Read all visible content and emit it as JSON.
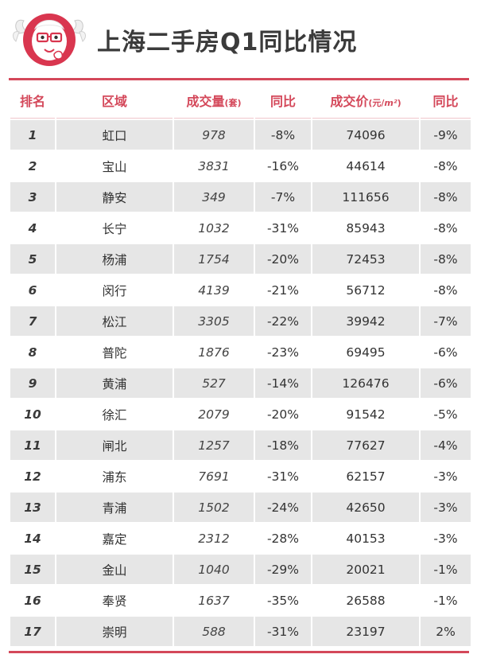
{
  "title": "上海二手房Q1同比情况",
  "headers": {
    "rank": "排名",
    "district": "区域",
    "volume": "成交量",
    "volume_unit": "(套)",
    "yoy1": "同比",
    "price": "成交价",
    "price_unit_a": "(元/",
    "price_unit_b": "m²",
    "price_unit_c": ")",
    "yoy2": "同比"
  },
  "rows": [
    {
      "rank": "1",
      "district": "虹口",
      "volume": "978",
      "yoy1": "-8%",
      "price": "74096",
      "yoy2": "-9%"
    },
    {
      "rank": "2",
      "district": "宝山",
      "volume": "3831",
      "yoy1": "-16%",
      "price": "44614",
      "yoy2": "-8%"
    },
    {
      "rank": "3",
      "district": "静安",
      "volume": "349",
      "yoy1": "-7%",
      "price": "111656",
      "yoy2": "-8%"
    },
    {
      "rank": "4",
      "district": "长宁",
      "volume": "1032",
      "yoy1": "-31%",
      "price": "85943",
      "yoy2": "-8%"
    },
    {
      "rank": "5",
      "district": "杨浦",
      "volume": "1754",
      "yoy1": "-20%",
      "price": "72453",
      "yoy2": "-8%"
    },
    {
      "rank": "6",
      "district": "闵行",
      "volume": "4139",
      "yoy1": "-21%",
      "price": "56712",
      "yoy2": "-8%"
    },
    {
      "rank": "7",
      "district": "松江",
      "volume": "3305",
      "yoy1": "-22%",
      "price": "39942",
      "yoy2": "-7%"
    },
    {
      "rank": "8",
      "district": "普陀",
      "volume": "1876",
      "yoy1": "-23%",
      "price": "69495",
      "yoy2": "-6%"
    },
    {
      "rank": "9",
      "district": "黄浦",
      "volume": "527",
      "yoy1": "-14%",
      "price": "126476",
      "yoy2": "-6%"
    },
    {
      "rank": "10",
      "district": "徐汇",
      "volume": "2079",
      "yoy1": "-20%",
      "price": "91542",
      "yoy2": "-5%"
    },
    {
      "rank": "11",
      "district": "闸北",
      "volume": "1257",
      "yoy1": "-18%",
      "price": "77627",
      "yoy2": "-4%"
    },
    {
      "rank": "12",
      "district": "浦东",
      "volume": "7691",
      "yoy1": "-31%",
      "price": "62157",
      "yoy2": "-3%"
    },
    {
      "rank": "13",
      "district": "青浦",
      "volume": "1502",
      "yoy1": "-24%",
      "price": "42650",
      "yoy2": "-3%"
    },
    {
      "rank": "14",
      "district": "嘉定",
      "volume": "2312",
      "yoy1": "-28%",
      "price": "40153",
      "yoy2": "-3%"
    },
    {
      "rank": "15",
      "district": "金山",
      "volume": "1040",
      "yoy1": "-29%",
      "price": "20021",
      "yoy2": "-1%"
    },
    {
      "rank": "16",
      "district": "奉贤",
      "volume": "1637",
      "yoy1": "-35%",
      "price": "26588",
      "yoy2": "-1%"
    },
    {
      "rank": "17",
      "district": "崇明",
      "volume": "588",
      "yoy1": "-31%",
      "price": "23197",
      "yoy2": "2%"
    }
  ],
  "colors": {
    "accent": "#d4485a",
    "row_stripe": "#e6e6e6",
    "title_text": "#3b3b3b"
  },
  "icons": {
    "logo": "mascot-logo-icon"
  }
}
